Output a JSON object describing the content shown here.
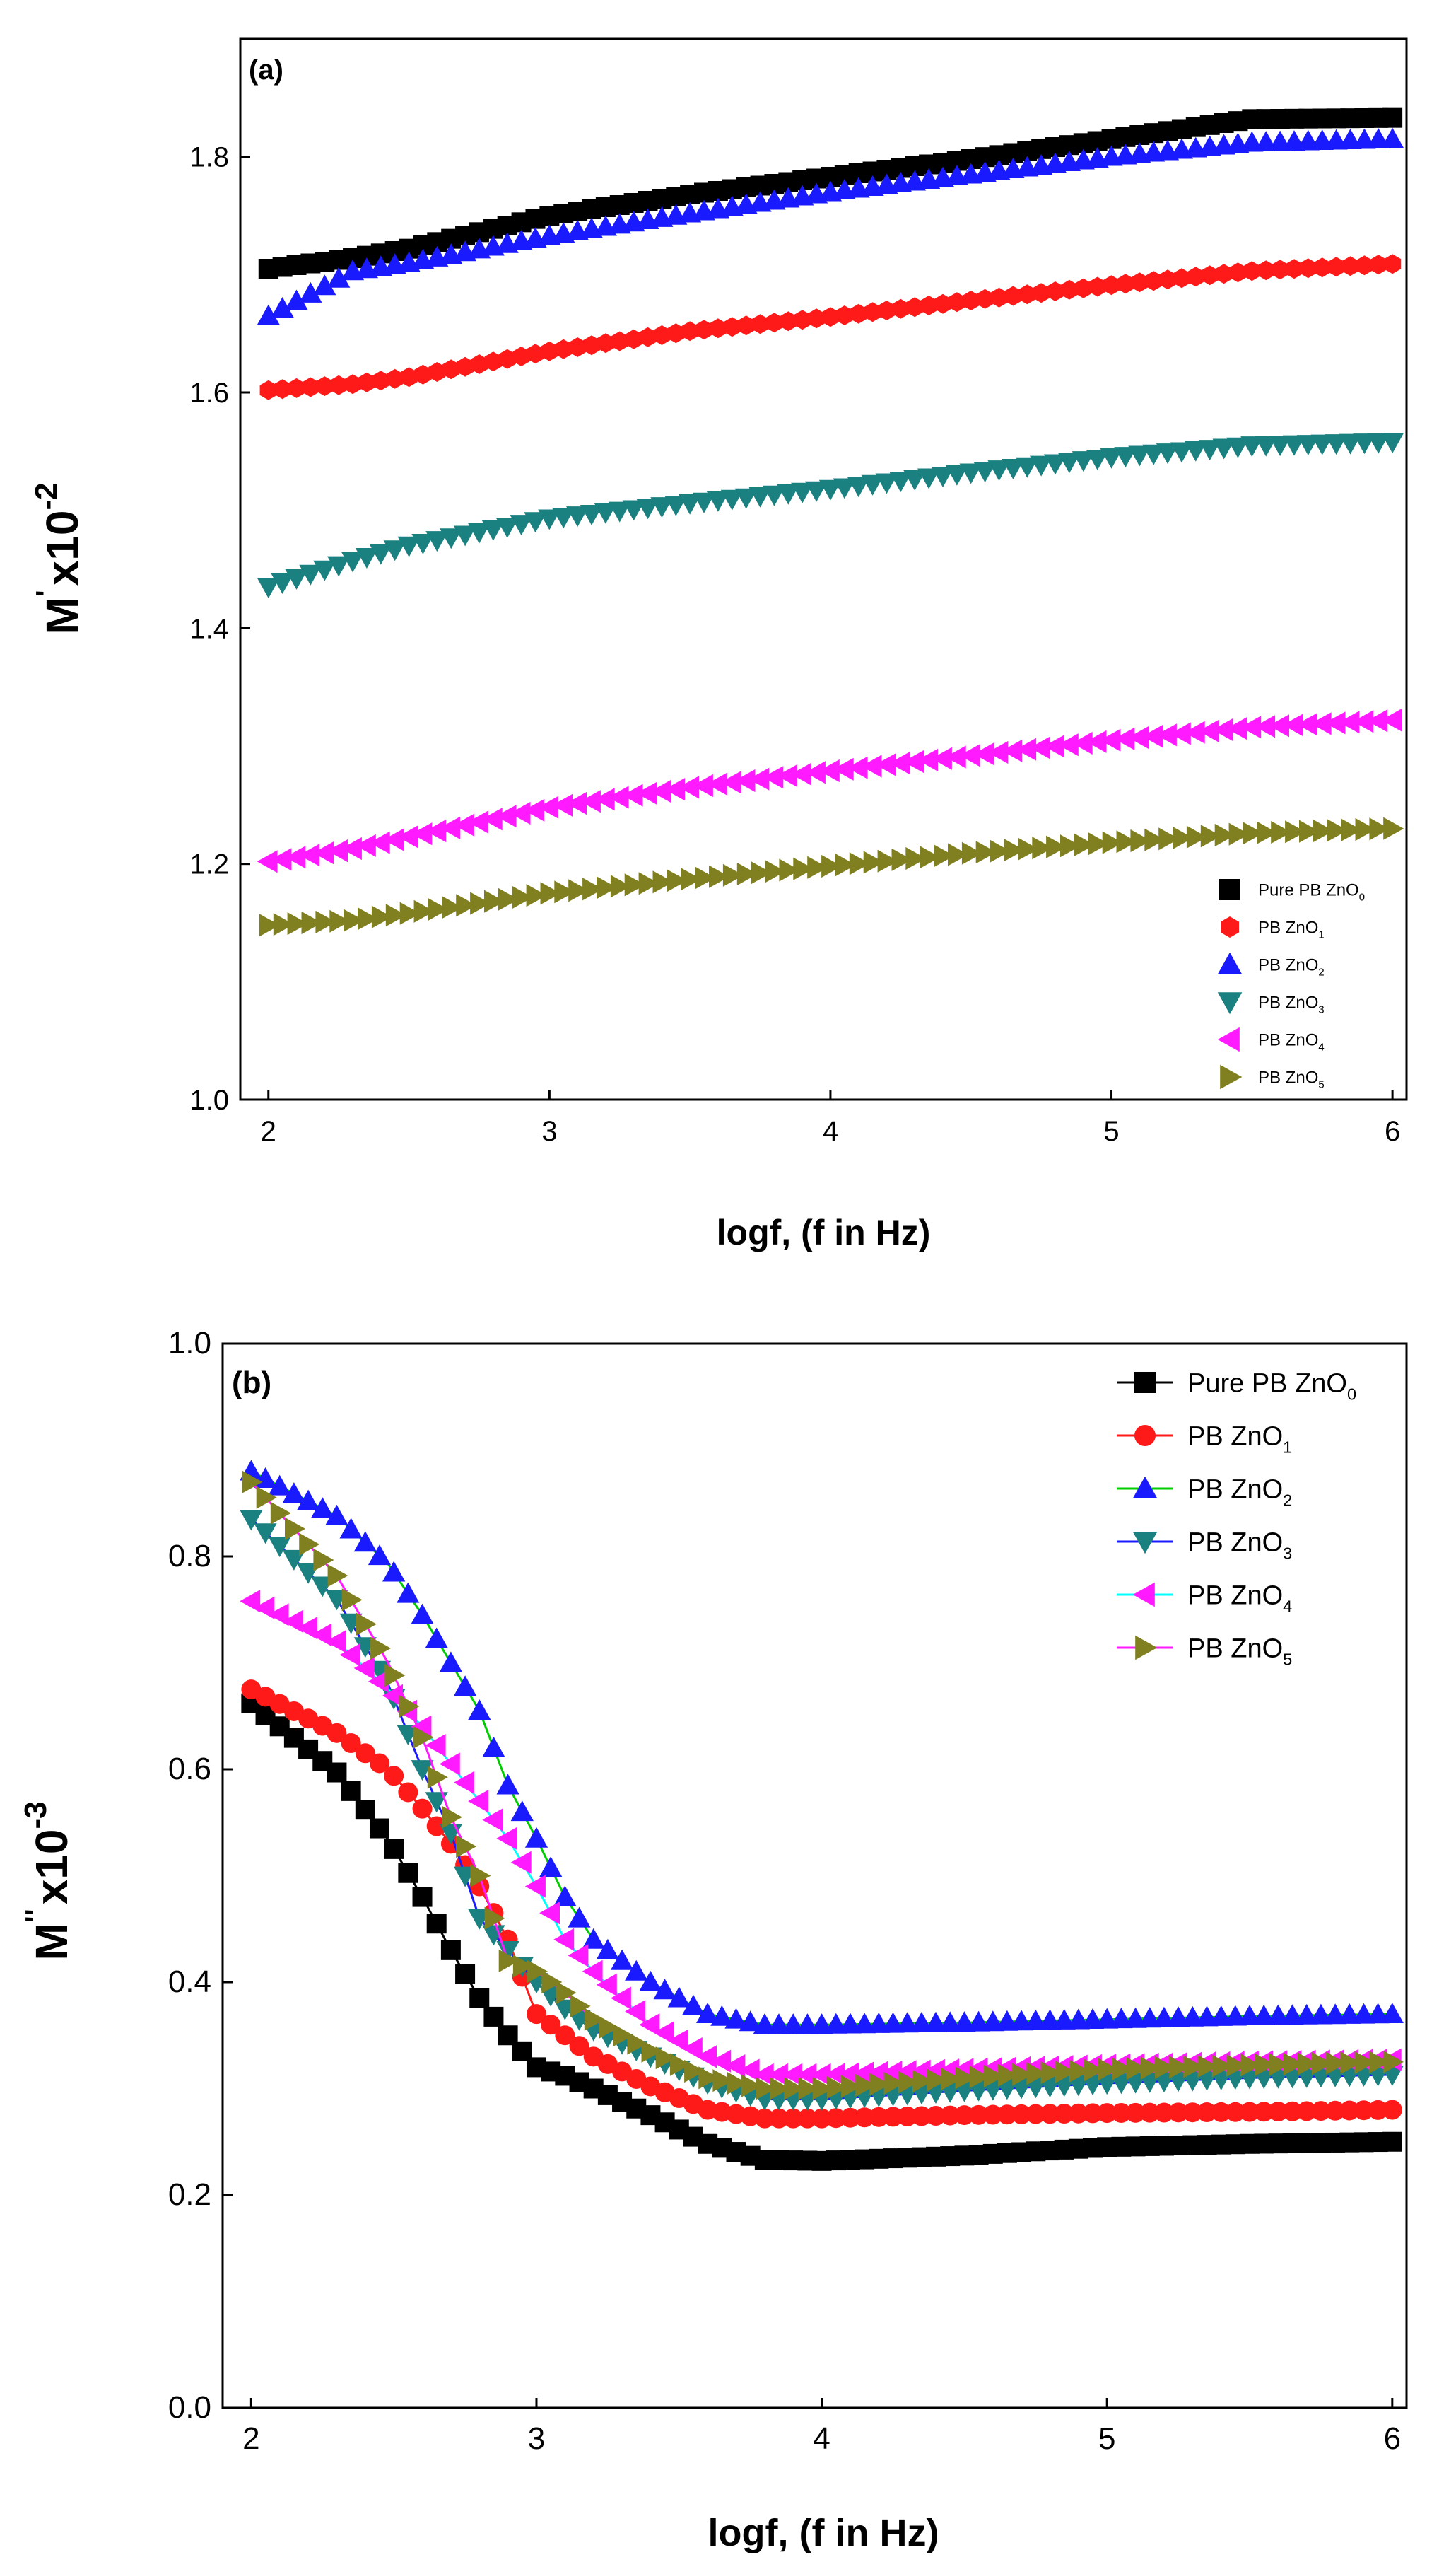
{
  "colors": {
    "black": "#000000",
    "red": "#ff1a1a",
    "blue": "#1a1aff",
    "teal": "#1a8080",
    "magenta": "#ff1aff",
    "olive": "#808020",
    "green_line": "#00cc00",
    "cyan_line": "#00ffff",
    "axis": "#000000"
  },
  "chart_data": [
    {
      "panel": "(a)",
      "type": "scatter",
      "title": "",
      "ylabel_main": "M",
      "ylabel_prime": "'",
      "ylabel_rest": "x10",
      "ylabel_exp": "-2",
      "xlabel": "logf, (f in Hz)",
      "xlim": [
        1.9,
        6.05
      ],
      "ylim": [
        1.0,
        1.9
      ],
      "xticks": [
        "2",
        "3",
        "4",
        "5",
        "6"
      ],
      "yticks": [
        "1.0",
        "1.2",
        "1.4",
        "1.6",
        "1.8"
      ],
      "legend_position": "bottom-right",
      "series": [
        {
          "name": "Pure PB ZnO",
          "sub": "0",
          "marker": "square",
          "color": "#000000",
          "points": [
            [
              2.0,
              1.705
            ],
            [
              2.3,
              1.714
            ],
            [
              2.5,
              1.722
            ],
            [
              3.0,
              1.75
            ],
            [
              3.5,
              1.768
            ],
            [
              4.0,
              1.783
            ],
            [
              4.5,
              1.798
            ],
            [
              5.0,
              1.815
            ],
            [
              5.5,
              1.832
            ],
            [
              6.0,
              1.833
            ]
          ]
        },
        {
          "name": "PB ZnO",
          "sub": "1",
          "marker": "hexagon",
          "color": "#ff1a1a",
          "points": [
            [
              2.0,
              1.602
            ],
            [
              2.3,
              1.607
            ],
            [
              2.5,
              1.613
            ],
            [
              3.0,
              1.635
            ],
            [
              3.5,
              1.652
            ],
            [
              4.0,
              1.664
            ],
            [
              4.5,
              1.678
            ],
            [
              5.0,
              1.691
            ],
            [
              5.5,
              1.703
            ],
            [
              6.0,
              1.709
            ]
          ]
        },
        {
          "name": "PB ZnO",
          "sub": "2",
          "marker": "triangle-up",
          "color": "#1a1aff",
          "points": [
            [
              2.0,
              1.665
            ],
            [
              2.3,
              1.703
            ],
            [
              2.5,
              1.71
            ],
            [
              3.0,
              1.733
            ],
            [
              3.5,
              1.752
            ],
            [
              4.0,
              1.77
            ],
            [
              4.5,
              1.785
            ],
            [
              5.0,
              1.8
            ],
            [
              5.5,
              1.812
            ],
            [
              6.0,
              1.815
            ]
          ]
        },
        {
          "name": "PB ZnO",
          "sub": "3",
          "marker": "triangle-down",
          "color": "#1a8080",
          "points": [
            [
              2.0,
              1.435
            ],
            [
              2.3,
              1.457
            ],
            [
              2.5,
              1.47
            ],
            [
              3.0,
              1.493
            ],
            [
              3.5,
              1.506
            ],
            [
              4.0,
              1.518
            ],
            [
              4.5,
              1.532
            ],
            [
              5.0,
              1.545
            ],
            [
              5.5,
              1.555
            ],
            [
              6.0,
              1.558
            ]
          ]
        },
        {
          "name": "PB ZnO",
          "sub": "4",
          "marker": "triangle-left",
          "color": "#ff1aff",
          "points": [
            [
              2.0,
              1.202
            ],
            [
              2.3,
              1.213
            ],
            [
              2.5,
              1.223
            ],
            [
              3.0,
              1.248
            ],
            [
              3.5,
              1.265
            ],
            [
              4.0,
              1.279
            ],
            [
              4.5,
              1.292
            ],
            [
              5.0,
              1.305
            ],
            [
              5.5,
              1.316
            ],
            [
              6.0,
              1.322
            ]
          ]
        },
        {
          "name": "PB ZnO",
          "sub": "5",
          "marker": "triangle-right",
          "color": "#808020",
          "points": [
            [
              2.0,
              1.148
            ],
            [
              2.3,
              1.152
            ],
            [
              2.5,
              1.158
            ],
            [
              3.0,
              1.175
            ],
            [
              3.5,
              1.187
            ],
            [
              4.0,
              1.198
            ],
            [
              4.5,
              1.209
            ],
            [
              5.0,
              1.218
            ],
            [
              5.5,
              1.226
            ],
            [
              6.0,
              1.23
            ]
          ]
        }
      ]
    },
    {
      "panel": "(b)",
      "type": "line",
      "title": "",
      "ylabel_main": "M",
      "ylabel_prime": "''",
      "ylabel_rest": "x10",
      "ylabel_exp": "-3",
      "xlabel": "logf, (f in Hz)",
      "xlim": [
        1.9,
        6.05
      ],
      "ylim": [
        0.0,
        1.0
      ],
      "xticks": [
        "2",
        "3",
        "4",
        "5",
        "6"
      ],
      "yticks": [
        "0.0",
        "0.2",
        "0.4",
        "0.6",
        "0.8",
        "1.0"
      ],
      "legend_position": "top-right",
      "series": [
        {
          "name": "Pure PB ZnO",
          "sub": "0",
          "marker": "square",
          "color": "#000000",
          "line": "#000000",
          "points": [
            [
              2.0,
              0.662
            ],
            [
              2.3,
              0.597
            ],
            [
              2.48,
              0.534
            ],
            [
              2.6,
              0.48
            ],
            [
              2.7,
              0.43
            ],
            [
              2.8,
              0.385
            ],
            [
              2.9,
              0.35
            ],
            [
              3.0,
              0.32
            ],
            [
              3.1,
              0.312
            ],
            [
              3.2,
              0.3
            ],
            [
              3.4,
              0.275
            ],
            [
              3.6,
              0.248
            ],
            [
              3.8,
              0.233
            ],
            [
              4.0,
              0.232
            ],
            [
              4.5,
              0.237
            ],
            [
              5.0,
              0.245
            ],
            [
              5.5,
              0.248
            ],
            [
              6.0,
              0.25
            ]
          ]
        },
        {
          "name": "PB ZnO",
          "sub": "1",
          "marker": "circle",
          "color": "#ff1a1a",
          "line": "#ff1a1a",
          "points": [
            [
              2.0,
              0.675
            ],
            [
              2.3,
              0.634
            ],
            [
              2.48,
              0.6
            ],
            [
              2.6,
              0.563
            ],
            [
              2.7,
              0.53
            ],
            [
              2.8,
              0.49
            ],
            [
              2.9,
              0.44
            ],
            [
              3.0,
              0.37
            ],
            [
              3.1,
              0.35
            ],
            [
              3.2,
              0.33
            ],
            [
              3.4,
              0.302
            ],
            [
              3.6,
              0.28
            ],
            [
              3.8,
              0.272
            ],
            [
              4.0,
              0.272
            ],
            [
              4.5,
              0.275
            ],
            [
              5.0,
              0.277
            ],
            [
              5.5,
              0.278
            ],
            [
              6.0,
              0.28
            ]
          ]
        },
        {
          "name": "PB ZnO",
          "sub": "2",
          "marker": "triangle-up",
          "color": "#1a1aff",
          "line": "#00cc00",
          "points": [
            [
              2.0,
              0.88
            ],
            [
              2.3,
              0.838
            ],
            [
              2.48,
              0.793
            ],
            [
              2.6,
              0.745
            ],
            [
              2.7,
              0.7
            ],
            [
              2.8,
              0.655
            ],
            [
              2.9,
              0.585
            ],
            [
              3.0,
              0.535
            ],
            [
              3.1,
              0.48
            ],
            [
              3.2,
              0.44
            ],
            [
              3.4,
              0.4
            ],
            [
              3.6,
              0.37
            ],
            [
              3.8,
              0.36
            ],
            [
              4.0,
              0.36
            ],
            [
              4.5,
              0.362
            ],
            [
              5.0,
              0.365
            ],
            [
              5.5,
              0.368
            ],
            [
              6.0,
              0.37
            ]
          ]
        },
        {
          "name": "PB ZnO",
          "sub": "3",
          "marker": "triangle-down",
          "color": "#1a8080",
          "line": "#1a1aff",
          "points": [
            [
              2.0,
              0.835
            ],
            [
              2.3,
              0.76
            ],
            [
              2.48,
              0.68
            ],
            [
              2.6,
              0.6
            ],
            [
              2.7,
              0.54
            ],
            [
              2.8,
              0.46
            ],
            [
              2.9,
              0.43
            ],
            [
              3.0,
              0.4
            ],
            [
              3.1,
              0.375
            ],
            [
              3.2,
              0.355
            ],
            [
              3.4,
              0.33
            ],
            [
              3.6,
              0.305
            ],
            [
              3.8,
              0.29
            ],
            [
              4.0,
              0.29
            ],
            [
              4.5,
              0.298
            ],
            [
              5.0,
              0.305
            ],
            [
              5.5,
              0.31
            ],
            [
              6.0,
              0.313
            ]
          ]
        },
        {
          "name": "PB ZnO",
          "sub": "4",
          "marker": "triangle-left",
          "color": "#ff1aff",
          "line": "#00ffff",
          "points": [
            [
              2.0,
              0.758
            ],
            [
              2.3,
              0.72
            ],
            [
              2.48,
              0.675
            ],
            [
              2.6,
              0.64
            ],
            [
              2.7,
              0.605
            ],
            [
              2.8,
              0.57
            ],
            [
              2.9,
              0.535
            ],
            [
              3.0,
              0.49
            ],
            [
              3.1,
              0.44
            ],
            [
              3.2,
              0.41
            ],
            [
              3.4,
              0.36
            ],
            [
              3.6,
              0.33
            ],
            [
              3.8,
              0.313
            ],
            [
              4.0,
              0.313
            ],
            [
              4.5,
              0.318
            ],
            [
              5.0,
              0.322
            ],
            [
              5.5,
              0.325
            ],
            [
              6.0,
              0.327
            ]
          ]
        },
        {
          "name": "PB ZnO",
          "sub": "5",
          "marker": "triangle-right",
          "color": "#808020",
          "line": "#ff1aff",
          "points": [
            [
              2.0,
              0.87
            ],
            [
              2.3,
              0.782
            ],
            [
              2.48,
              0.7
            ],
            [
              2.6,
              0.63
            ],
            [
              2.7,
              0.555
            ],
            [
              2.8,
              0.5
            ],
            [
              2.9,
              0.42
            ],
            [
              3.0,
              0.41
            ],
            [
              3.1,
              0.39
            ],
            [
              3.2,
              0.365
            ],
            [
              3.4,
              0.335
            ],
            [
              3.6,
              0.31
            ],
            [
              3.8,
              0.3
            ],
            [
              4.0,
              0.3
            ],
            [
              4.5,
              0.31
            ],
            [
              5.0,
              0.318
            ],
            [
              5.5,
              0.322
            ],
            [
              6.0,
              0.325
            ]
          ]
        }
      ]
    }
  ]
}
